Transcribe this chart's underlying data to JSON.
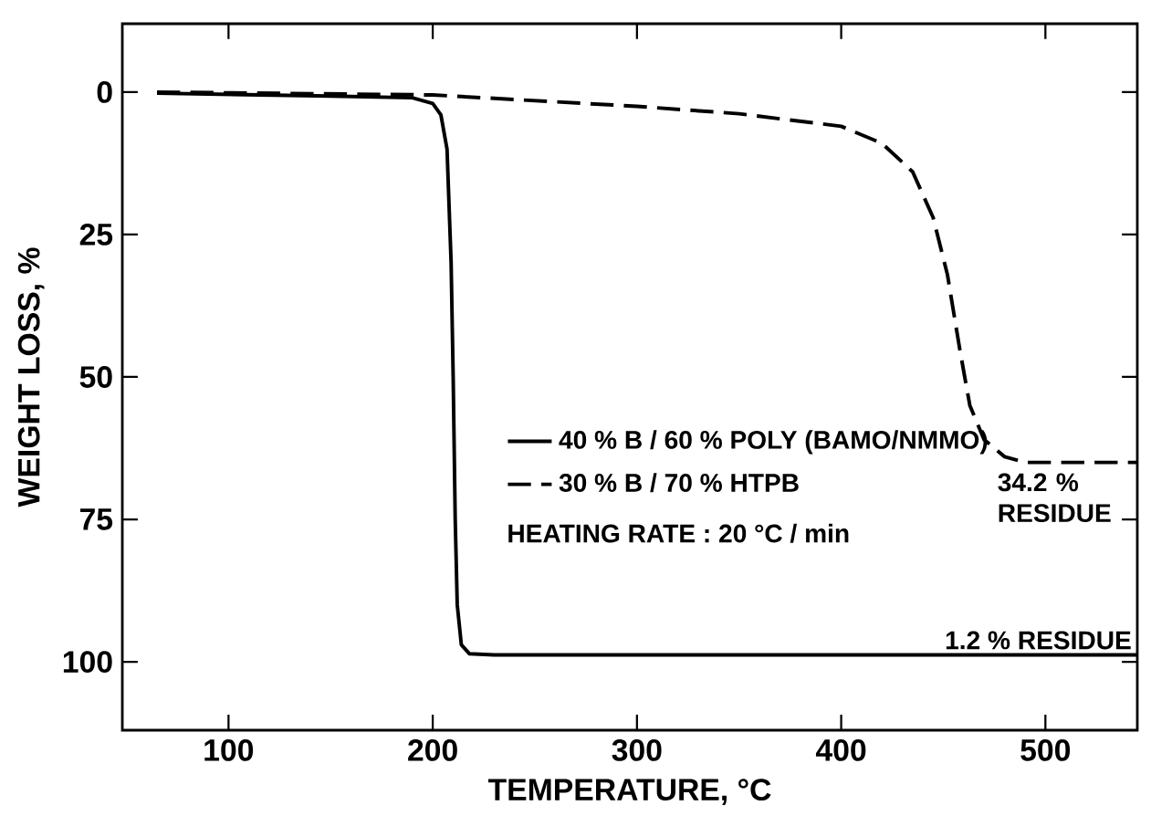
{
  "chart_data": {
    "type": "line",
    "xlabel": "TEMPERATURE, °C",
    "ylabel": "WEIGHT LOSS, %",
    "xlim": [
      48,
      545
    ],
    "ylim": [
      112,
      -12
    ],
    "xticks": [
      100,
      200,
      300,
      400,
      500
    ],
    "yticks": [
      0,
      25,
      50,
      75,
      100
    ],
    "grid": false,
    "legend": "center",
    "marker": "none",
    "series": [
      {
        "name": "40 % B / 60 % POLY (BAMO/NMMO)",
        "color": "#000000",
        "line_style": "solid",
        "x": [
          65,
          150,
          190,
          200,
          204,
          207,
          209,
          210,
          211,
          212,
          214,
          218,
          230,
          545
        ],
        "values": [
          0.2,
          0.7,
          1,
          2,
          4,
          10,
          30,
          50,
          75,
          90,
          97,
          98.6,
          98.8,
          98.8
        ]
      },
      {
        "name": "30 % B / 70 % HTPB",
        "color": "#000000",
        "line_style": "dashed",
        "x": [
          65,
          200,
          300,
          350,
          400,
          420,
          435,
          445,
          452,
          458,
          463,
          470,
          480,
          490,
          545
        ],
        "values": [
          0,
          0.5,
          2.5,
          3.8,
          6,
          9,
          14,
          22,
          32,
          45,
          55,
          61,
          64,
          65,
          65
        ]
      }
    ],
    "annotations": [
      "HEATING RATE : 20 °C / min",
      {
        "text": "34.2 % RESIDUE",
        "x": 475,
        "y": 65
      },
      {
        "text": "1.2 % RESIDUE",
        "x": 545,
        "y": 98.8
      }
    ]
  }
}
